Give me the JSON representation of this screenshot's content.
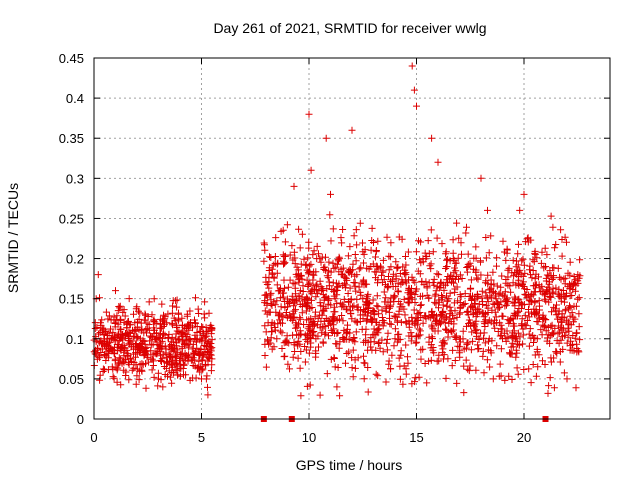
{
  "chart_data": {
    "type": "scatter",
    "title": "Day 261 of 2021, SRMTID for receiver wwlg",
    "xlabel": "GPS time / hours",
    "ylabel": "SRMTID / TECUs",
    "xlim": [
      0,
      24
    ],
    "ylim": [
      0,
      0.45
    ],
    "xticks": [
      0,
      5,
      10,
      15,
      20
    ],
    "xtick_labels": [
      "0",
      "5",
      "10",
      "15",
      "20"
    ],
    "yticks": [
      0,
      0.05,
      0.1,
      0.15,
      0.2,
      0.25,
      0.3,
      0.35,
      0.4,
      0.45
    ],
    "ytick_labels": [
      "0",
      "0.05",
      "0.1",
      "0.15",
      "0.2",
      "0.25",
      "0.3",
      "0.35",
      "0.4",
      "0.45"
    ],
    "grid": true,
    "marker": "+",
    "color": "#dd0000",
    "baseline_markers": [
      7.9,
      9.2,
      21.0
    ],
    "series": [
      {
        "name": "SRMTID",
        "segments": [
          {
            "start": 0.0,
            "end": 5.5,
            "mean": 0.095,
            "spread": 0.025
          },
          {
            "start": 7.9,
            "end": 22.6,
            "mean": 0.14,
            "spread": 0.045
          }
        ],
        "x": [
          0.1,
          0.2,
          0.3,
          0.5,
          0.8,
          1.0,
          1.3,
          1.6,
          1.9,
          2.2,
          2.5,
          2.8,
          3.0,
          3.2,
          3.5,
          3.8,
          4.1,
          4.4,
          4.7,
          5.0,
          5.3,
          8.1,
          8.5,
          9.0,
          9.3,
          9.6,
          10.0,
          10.1,
          10.5,
          10.8,
          11.0,
          11.5,
          12.0,
          12.5,
          13.0,
          13.5,
          14.0,
          14.5,
          14.8,
          14.9,
          15.0,
          15.3,
          15.7,
          16.0,
          16.5,
          17.0,
          17.5,
          18.0,
          18.3,
          18.7,
          19.0,
          19.5,
          19.8,
          20.0,
          20.3,
          20.7,
          21.0,
          21.5,
          22.0,
          22.5
        ],
        "y": [
          0.15,
          0.18,
          0.12,
          0.08,
          0.1,
          0.16,
          0.09,
          0.07,
          0.12,
          0.11,
          0.08,
          0.15,
          0.05,
          0.04,
          0.06,
          0.1,
          0.09,
          0.08,
          0.12,
          0.05,
          0.03,
          0.12,
          0.1,
          0.14,
          0.29,
          0.16,
          0.38,
          0.31,
          0.2,
          0.35,
          0.28,
          0.18,
          0.36,
          0.15,
          0.22,
          0.12,
          0.1,
          0.18,
          0.44,
          0.41,
          0.39,
          0.2,
          0.35,
          0.32,
          0.15,
          0.09,
          0.12,
          0.3,
          0.26,
          0.15,
          0.1,
          0.09,
          0.26,
          0.28,
          0.18,
          0.08,
          0.19,
          0.13,
          0.05,
          0.18
        ]
      }
    ]
  }
}
